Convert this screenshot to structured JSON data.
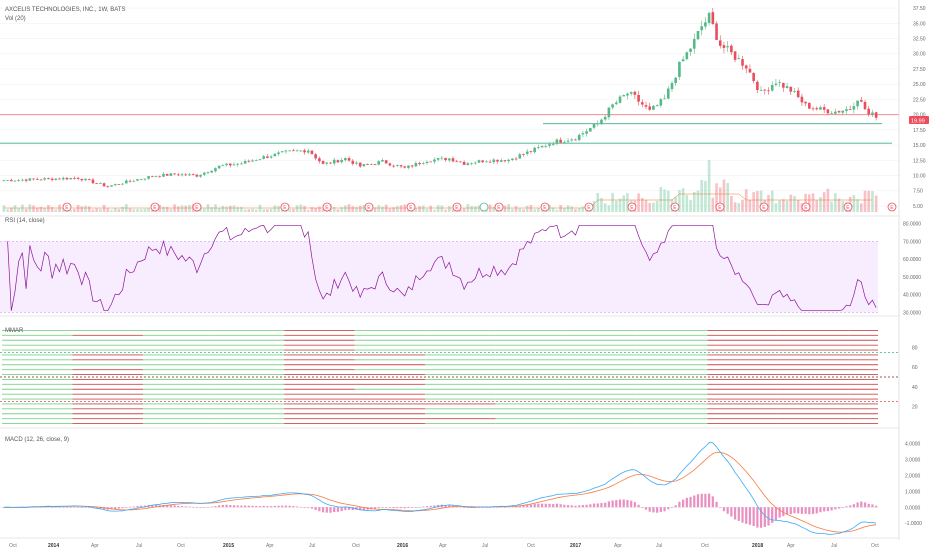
{
  "header": {
    "title": "AXCELIS TECHNOLOGIES, INC., 1W, BATS",
    "vol_label": "Vol (20)"
  },
  "colors": {
    "up": "#53b987",
    "down": "#eb4d5c",
    "rsi_line": "#8e1599",
    "rsi_band": "#9915ff",
    "macd_line": "#3fa9f5",
    "signal_line": "#f57c3f",
    "hline_green": "#3cb08c",
    "hline_red": "#f08080"
  },
  "price_badge": "19.99",
  "chart_data": [
    {
      "type": "candlestick",
      "panel": "price",
      "title": "AXCELIS TECHNOLOGIES, INC., 1W, BATS",
      "y_ticks": [
        "37.50",
        "35.00",
        "32.50",
        "30.00",
        "27.50",
        "25.00",
        "22.50",
        "20.00",
        "17.50",
        "15.00",
        "12.50",
        "10.00",
        "7.50",
        "5.00"
      ],
      "ylim": [
        4,
        38
      ],
      "x_ticks": [
        "Oct",
        "2014",
        "Apr",
        "Jul",
        "Oct",
        "2015",
        "Apr",
        "Jul",
        "Oct",
        "2016",
        "Apr",
        "Jul",
        "Oct",
        "2017",
        "Apr",
        "Jul",
        "Oct",
        "2018",
        "Apr",
        "Jul",
        "Oct"
      ],
      "close_keypoints": [
        [
          0,
          9.2
        ],
        [
          10,
          9.4
        ],
        [
          20,
          9.6
        ],
        [
          28,
          8.2
        ],
        [
          34,
          9.1
        ],
        [
          40,
          9.9
        ],
        [
          46,
          10.2
        ],
        [
          52,
          10.0
        ],
        [
          58,
          11.5
        ],
        [
          64,
          12.0
        ],
        [
          70,
          13.0
        ],
        [
          76,
          13.8
        ],
        [
          82,
          14.2
        ],
        [
          86,
          11.8
        ],
        [
          92,
          12.8
        ],
        [
          96,
          11.5
        ],
        [
          102,
          12.3
        ],
        [
          108,
          11.2
        ],
        [
          114,
          12.5
        ],
        [
          120,
          12.8
        ],
        [
          124,
          12.0
        ],
        [
          130,
          12.5
        ],
        [
          136,
          12.6
        ],
        [
          142,
          14.0
        ],
        [
          148,
          15.5
        ],
        [
          154,
          16.2
        ],
        [
          156,
          17.0
        ],
        [
          160,
          18.5
        ],
        [
          164,
          21.5
        ],
        [
          168,
          23.5
        ],
        [
          170,
          22.8
        ],
        [
          174,
          20.5
        ],
        [
          178,
          22.5
        ],
        [
          182,
          28.0
        ],
        [
          186,
          32.0
        ],
        [
          188,
          34.5
        ],
        [
          190,
          36.0
        ],
        [
          193,
          31.5
        ],
        [
          196,
          30.0
        ],
        [
          200,
          28.0
        ],
        [
          204,
          23.5
        ],
        [
          208,
          25.5
        ],
        [
          212,
          24.0
        ],
        [
          216,
          21.5
        ],
        [
          220,
          20.8
        ],
        [
          224,
          20.5
        ],
        [
          228,
          21.0
        ],
        [
          230,
          22.8
        ],
        [
          233,
          20.0
        ],
        [
          236,
          19.8
        ]
      ],
      "horizontal_lines": [
        {
          "level": 19.99,
          "color": "red",
          "label": "19.99"
        },
        {
          "level": 18.5,
          "color": "green"
        },
        {
          "level": 15.3,
          "color": "green"
        }
      ],
      "earnings_markers": "E"
    },
    {
      "type": "bar",
      "panel": "volume",
      "title": "Vol (20)"
    },
    {
      "type": "line",
      "panel": "rsi",
      "title": "RSI (14, close)",
      "y_ticks": [
        "80.0000",
        "70.0000",
        "60.0000",
        "50.0000",
        "40.0000",
        "30.0000"
      ],
      "ylim": [
        28,
        82
      ],
      "band": [
        30,
        70
      ]
    },
    {
      "type": "heatmap",
      "panel": "mmar",
      "title": "MMAR",
      "y_ticks": [
        "80",
        "60",
        "40",
        "20"
      ],
      "ylim": [
        0,
        100
      ],
      "dashed_levels": [
        {
          "level": 75,
          "color": "green"
        },
        {
          "level": 50,
          "color": "darkred"
        },
        {
          "level": 25,
          "color": "red"
        }
      ]
    },
    {
      "type": "line",
      "panel": "macd",
      "title": "MACD (12, 26, close, 9)",
      "y_ticks": [
        "4.0000",
        "3.0000",
        "2.0000",
        "1.0000",
        "0.0000",
        "-1.0000"
      ],
      "ylim": [
        -1.8,
        4.4
      ],
      "series": [
        {
          "name": "MACD"
        },
        {
          "name": "Signal"
        },
        {
          "name": "Histogram"
        }
      ]
    }
  ]
}
